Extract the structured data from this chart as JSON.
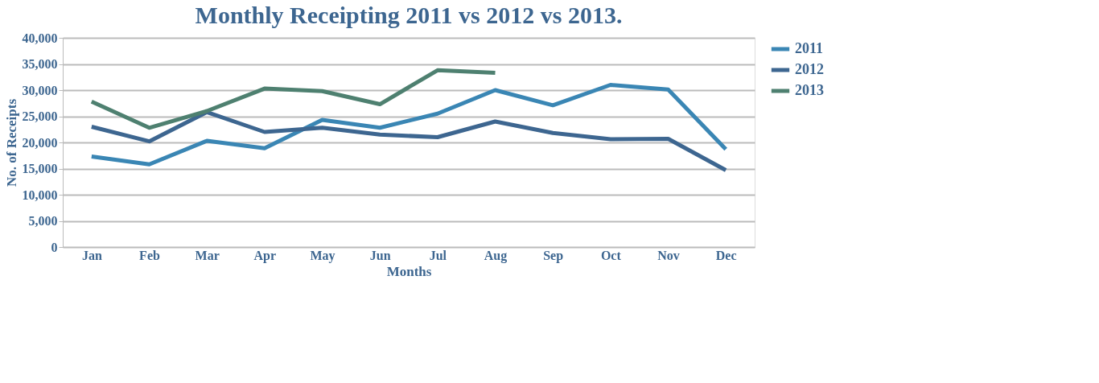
{
  "chart_data": {
    "type": "line",
    "title": "Monthly Receipting 2011 vs 2012 vs 2013.",
    "xlabel": "Months",
    "ylabel": "No. of Receipts",
    "categories": [
      "Jan",
      "Feb",
      "Mar",
      "Apr",
      "May",
      "Jun",
      "Jul",
      "Aug",
      "Sep",
      "Oct",
      "Nov",
      "Dec"
    ],
    "series": [
      {
        "name": "2011",
        "color": "#3a86b4",
        "values": [
          17300,
          15800,
          20300,
          18900,
          24300,
          22800,
          25500,
          30000,
          27100,
          31000,
          30100,
          18700
        ]
      },
      {
        "name": "2012",
        "color": "#3d6690",
        "values": [
          23000,
          20200,
          25800,
          22000,
          22800,
          21500,
          21000,
          24000,
          21800,
          20600,
          20700,
          14700
        ]
      },
      {
        "name": "2013",
        "color": "#4e8070",
        "values": [
          27800,
          22800,
          26000,
          30300,
          29800,
          27300,
          33800,
          33300,
          null,
          null,
          null,
          null
        ]
      }
    ],
    "ylim": [
      0,
      40000
    ],
    "yticks": [
      0,
      {
        "value": 5000,
        "label": "5,000"
      },
      {
        "value": 10000,
        "label": "10,000"
      },
      {
        "value": 15000,
        "label": "15,000"
      },
      {
        "value": 20000,
        "label": "20,000"
      },
      {
        "value": 25000,
        "label": "25,000"
      },
      {
        "value": 30000,
        "label": "30,000"
      },
      {
        "value": 35000,
        "label": "35,000"
      },
      {
        "value": 40000,
        "label": "40,000"
      }
    ],
    "grid": "y",
    "legend": "right",
    "marker": "none",
    "line_style": "solid"
  }
}
